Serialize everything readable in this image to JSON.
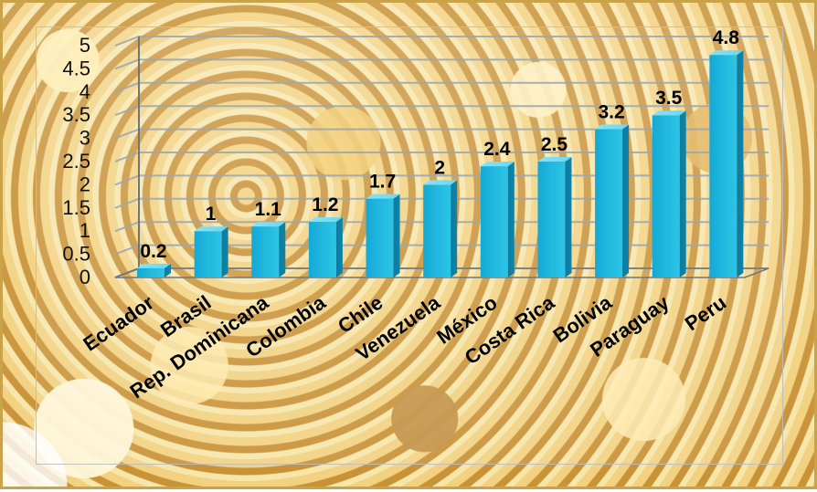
{
  "chart_data": {
    "type": "bar",
    "categories": [
      "Ecuador",
      "Brasil",
      "Rep. Dominicana",
      "Colombia",
      "Chile",
      "Venezuela",
      "México",
      "Costa Rica",
      "Bolivia",
      "Paraguay",
      "Peru"
    ],
    "values": [
      0.2,
      1,
      1.1,
      1.2,
      1.7,
      2,
      2.4,
      2.5,
      3.2,
      3.5,
      4.8
    ],
    "value_labels": [
      "0.2",
      "1",
      "1.1",
      "1.2",
      "1.7",
      "2",
      "2.4",
      "2.5",
      "3.2",
      "3.5",
      "4.8"
    ],
    "y_ticks": [
      "0",
      "0.5",
      "1",
      "1.5",
      "2",
      "2.5",
      "3",
      "3.5",
      "4",
      "4.5",
      "5"
    ],
    "ylim": [
      0,
      5
    ],
    "grid": true,
    "legend": "none",
    "colors": {
      "bar_front": "#22b8df",
      "bar_top": "#6ad7f2",
      "bar_side": "#0f84a8",
      "grid": "#9ea7ad",
      "axis": "#6f767b"
    }
  }
}
